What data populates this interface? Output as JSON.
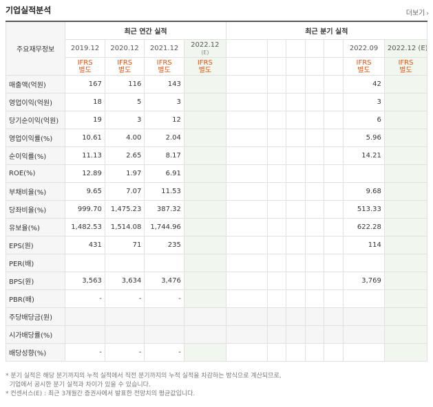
{
  "title": "기업실적분석",
  "more_label": "더보기",
  "more_arrow": "›",
  "header": {
    "corner": "주요재무정보",
    "annual_group": "최근 연간 실적",
    "quarter_group": "최근 분기 실적",
    "annual_years": [
      "2019.12",
      "2020.12",
      "2021.12",
      "2022.12"
    ],
    "annual_est_mark": "(E)",
    "quarter_years": [
      "2022.09",
      "2022.12"
    ],
    "quarter_est_mark": "(E)",
    "ifrs_line1": "IFRS",
    "ifrs_line2": "별도"
  },
  "rows": [
    {
      "label": "매출액(억원)",
      "annual": [
        "167",
        "116",
        "143",
        ""
      ],
      "q0922": "42"
    },
    {
      "label": "영업이익(억원)",
      "annual": [
        "18",
        "5",
        "3",
        ""
      ],
      "q0922": "3"
    },
    {
      "label": "당기순이익(억원)",
      "annual": [
        "19",
        "3",
        "12",
        ""
      ],
      "q0922": "6"
    },
    {
      "label": "영업이익률(%)",
      "annual": [
        "10.61",
        "4.00",
        "2.04",
        ""
      ],
      "q0922": "5.96"
    },
    {
      "label": "순이익률(%)",
      "annual": [
        "11.13",
        "2.65",
        "8.17",
        ""
      ],
      "q0922": "14.21"
    },
    {
      "label": "ROE(%)",
      "annual": [
        "12.89",
        "1.97",
        "6.91",
        ""
      ],
      "q0922": ""
    },
    {
      "label": "부채비율(%)",
      "annual": [
        "9.65",
        "7.07",
        "11.53",
        ""
      ],
      "q0922": "9.68"
    },
    {
      "label": "당좌비율(%)",
      "annual": [
        "999.70",
        "1,475.23",
        "387.32",
        ""
      ],
      "q0922": "513.33"
    },
    {
      "label": "유보율(%)",
      "annual": [
        "1,482.53",
        "1,514.08",
        "1,744.96",
        ""
      ],
      "q0922": "622.28"
    },
    {
      "label": "EPS(원)",
      "annual": [
        "431",
        "71",
        "235",
        ""
      ],
      "q0922": "114"
    },
    {
      "label": "PER(배)",
      "annual": [
        "",
        "",
        "",
        ""
      ],
      "q0922": ""
    },
    {
      "label": "BPS(원)",
      "annual": [
        "3,563",
        "3,634",
        "3,476",
        ""
      ],
      "q0922": "3,769"
    },
    {
      "label": "PBR(배)",
      "annual": [
        "-",
        "-",
        "-",
        ""
      ],
      "q0922": ""
    },
    {
      "label": "주당배당금(원)",
      "annual": [
        "",
        "",
        "",
        ""
      ],
      "q0922": ""
    },
    {
      "label": "시가배당률(%)",
      "annual": [
        "",
        "",
        "",
        ""
      ],
      "q0922": ""
    },
    {
      "label": "배당성향(%)",
      "annual": [
        "-",
        "-",
        "-",
        ""
      ],
      "q0922": ""
    }
  ],
  "notes": [
    "* 분기 실적은 해당 분기까지의 누적 실적에서 직전 분기까지의 누적 실적을 차감하는 방식으로 계산되므로,",
    "  기업에서 공시한 분기 실적과 차이가 있을 수 있습니다.",
    "* 컨센서스(E) : 최근 3개월간 증권사에서 발표한 전망치의 평균값입니다."
  ]
}
